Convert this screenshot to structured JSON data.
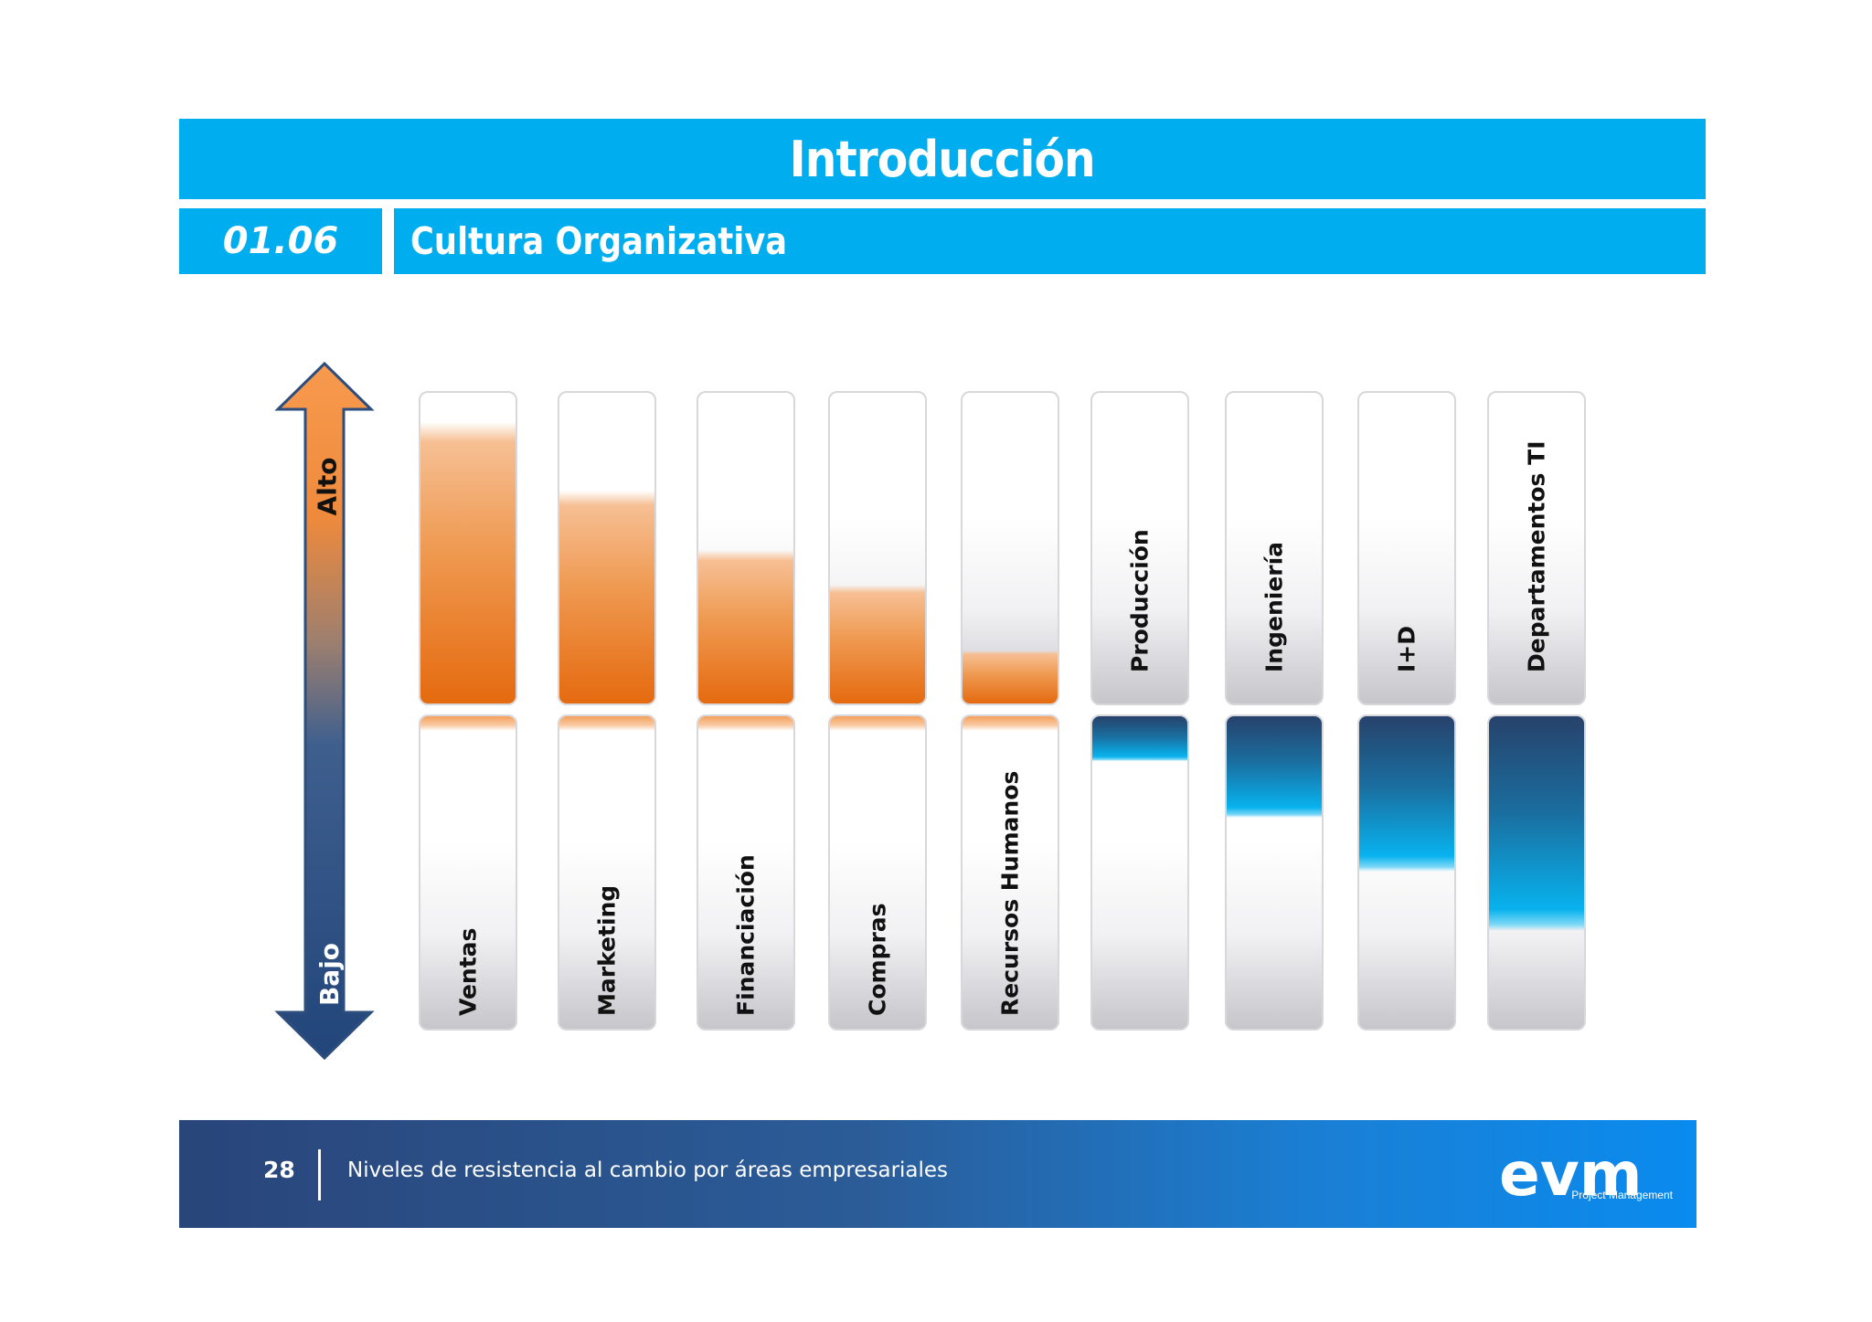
{
  "header": {
    "title": "Introducción",
    "section_number": "01.06",
    "section_title": "Cultura Organizativa"
  },
  "axis": {
    "high_label": "Alto",
    "low_label": "Bajo"
  },
  "colors": {
    "accent": "#00aeef",
    "high_resistance": "#e56a0f",
    "low_resistance": "#1a6e9f",
    "footer_dark": "#29457a"
  },
  "chart_data": {
    "type": "bar",
    "title": "",
    "categories_high": [
      "Ventas",
      "Marketing",
      "Financiación",
      "Compras",
      "Recursos Humanos"
    ],
    "categories_low": [
      "Producción",
      "Ingeniería",
      "I+D",
      "Departamentos TI"
    ],
    "series": [
      {
        "values": [
          0.95,
          0.72,
          0.52,
          0.4,
          0.18
        ]
      },
      {
        "values": [
          0.15,
          0.34,
          0.52,
          0.72
        ]
      }
    ]
  },
  "footer": {
    "page_number": "28",
    "caption": "Niveles de resistencia al cambio por áreas empresariales",
    "logo_text": "evm",
    "logo_subtitle": "Project Management"
  }
}
